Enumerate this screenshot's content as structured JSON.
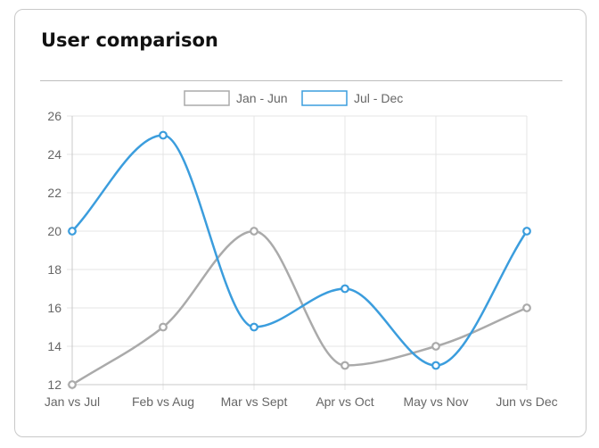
{
  "card": {
    "title": "User comparison"
  },
  "chart_data": {
    "type": "line",
    "title": "",
    "xlabel": "",
    "ylabel": "",
    "categories": [
      "Jan vs Jul",
      "Feb vs Aug",
      "Mar vs Sept",
      "Apr vs Oct",
      "May vs Nov",
      "Jun vs Dec"
    ],
    "ylim": [
      12,
      26
    ],
    "yticks": [
      12,
      14,
      16,
      18,
      20,
      22,
      24,
      26
    ],
    "grid": true,
    "legend_position": "top-center",
    "curve": "smooth",
    "series": [
      {
        "name": "Jan - Jun",
        "values": [
          12,
          15,
          20,
          13,
          14,
          16
        ],
        "color": "#aaaaaa"
      },
      {
        "name": "Jul - Dec",
        "values": [
          20,
          25,
          15,
          17,
          13,
          20
        ],
        "color": "#3b9ddd"
      }
    ]
  }
}
